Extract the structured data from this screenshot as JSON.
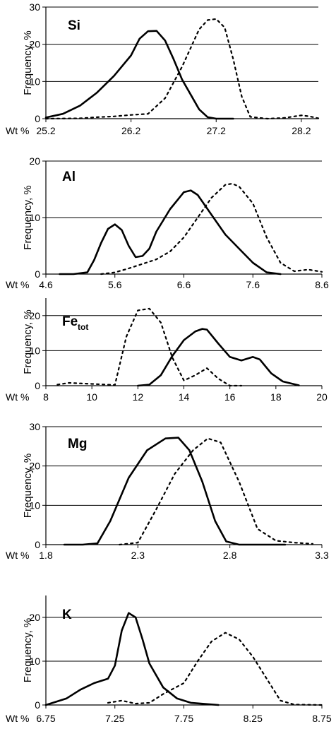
{
  "chart_data": [
    {
      "type": "line",
      "title": "Si",
      "title_sub": "",
      "xlabel": "Wt %",
      "ylabel": "Frequency, %",
      "xlim": [
        25.2,
        28.4
      ],
      "ylim": [
        0,
        30
      ],
      "yticks": [
        0,
        10,
        20,
        30
      ],
      "xticks": [
        25.2,
        26.2,
        27.2,
        28.2
      ],
      "xtick_labels": [
        "25.2",
        "26.2",
        "27.2",
        "28.2"
      ],
      "grid": "horizontal",
      "series": [
        {
          "style": "solid",
          "points": [
            [
              25.2,
              0.3
            ],
            [
              25.4,
              1.3
            ],
            [
              25.6,
              3.5
            ],
            [
              25.8,
              7.0
            ],
            [
              26.0,
              11.5
            ],
            [
              26.2,
              17.0
            ],
            [
              26.3,
              21.5
            ],
            [
              26.4,
              23.5
            ],
            [
              26.5,
              23.6
            ],
            [
              26.6,
              21.0
            ],
            [
              26.7,
              16.0
            ],
            [
              26.8,
              10.5
            ],
            [
              26.9,
              6.5
            ],
            [
              27.0,
              2.5
            ],
            [
              27.1,
              0.4
            ],
            [
              27.2,
              0
            ],
            [
              27.4,
              0
            ]
          ]
        },
        {
          "style": "dashed",
          "points": [
            [
              25.2,
              0
            ],
            [
              25.6,
              0.1
            ],
            [
              25.8,
              0.4
            ],
            [
              26.0,
              0.6
            ],
            [
              26.2,
              1.0
            ],
            [
              26.4,
              1.3
            ],
            [
              26.6,
              5.5
            ],
            [
              26.8,
              14.0
            ],
            [
              26.9,
              19.0
            ],
            [
              27.0,
              24.0
            ],
            [
              27.1,
              26.5
            ],
            [
              27.2,
              26.8
            ],
            [
              27.3,
              24.5
            ],
            [
              27.4,
              16.0
            ],
            [
              27.5,
              6.0
            ],
            [
              27.6,
              0.5
            ],
            [
              27.8,
              0
            ],
            [
              28.0,
              0.2
            ],
            [
              28.2,
              0.9
            ],
            [
              28.3,
              0.6
            ],
            [
              28.4,
              0.1
            ]
          ]
        }
      ]
    },
    {
      "type": "line",
      "title": "Al",
      "title_sub": "",
      "xlabel": "Wt %",
      "ylabel": "Frequency, %",
      "xlim": [
        4.6,
        8.6
      ],
      "ylim": [
        0,
        20
      ],
      "yticks": [
        0,
        10,
        20
      ],
      "xticks": [
        4.6,
        5.6,
        6.6,
        7.6,
        8.6
      ],
      "xtick_labels": [
        "4.6",
        "5.6",
        "6.6",
        "7.6",
        "8.6"
      ],
      "grid": "horizontal",
      "series": [
        {
          "style": "solid",
          "points": [
            [
              4.8,
              0
            ],
            [
              5.0,
              0
            ],
            [
              5.2,
              0.3
            ],
            [
              5.3,
              2.5
            ],
            [
              5.4,
              5.5
            ],
            [
              5.5,
              8.0
            ],
            [
              5.6,
              8.8
            ],
            [
              5.7,
              7.8
            ],
            [
              5.8,
              5.0
            ],
            [
              5.9,
              3.0
            ],
            [
              6.0,
              3.2
            ],
            [
              6.1,
              4.5
            ],
            [
              6.2,
              7.5
            ],
            [
              6.4,
              11.5
            ],
            [
              6.6,
              14.5
            ],
            [
              6.7,
              14.8
            ],
            [
              6.8,
              14.0
            ],
            [
              7.0,
              10.5
            ],
            [
              7.2,
              7.0
            ],
            [
              7.4,
              4.5
            ],
            [
              7.6,
              2.0
            ],
            [
              7.8,
              0.3
            ],
            [
              8.0,
              0
            ]
          ]
        },
        {
          "style": "dashed",
          "points": [
            [
              5.4,
              0
            ],
            [
              5.6,
              0.3
            ],
            [
              5.8,
              1.0
            ],
            [
              6.0,
              1.8
            ],
            [
              6.2,
              2.6
            ],
            [
              6.4,
              4.0
            ],
            [
              6.6,
              6.5
            ],
            [
              6.8,
              10.0
            ],
            [
              7.0,
              13.5
            ],
            [
              7.2,
              15.8
            ],
            [
              7.3,
              16.0
            ],
            [
              7.4,
              15.5
            ],
            [
              7.6,
              12.5
            ],
            [
              7.8,
              6.5
            ],
            [
              8.0,
              2.0
            ],
            [
              8.2,
              0.5
            ],
            [
              8.4,
              0.8
            ],
            [
              8.6,
              0.4
            ]
          ]
        }
      ]
    },
    {
      "type": "line",
      "title": "Fe",
      "title_sub": "tot",
      "xlabel": "Wt %",
      "ylabel": "Frequency, %",
      "xlim": [
        8,
        20
      ],
      "ylim": [
        0,
        25
      ],
      "yticks": [
        0,
        10,
        20
      ],
      "xticks": [
        8,
        10,
        12,
        14,
        16,
        18,
        20
      ],
      "xtick_labels": [
        "8",
        "10",
        "12",
        "14",
        "16",
        "18",
        "20"
      ],
      "grid": "horizontal",
      "series": [
        {
          "style": "solid",
          "points": [
            [
              12.0,
              0
            ],
            [
              12.5,
              0.3
            ],
            [
              13.0,
              3.0
            ],
            [
              13.5,
              8.5
            ],
            [
              14.0,
              13.0
            ],
            [
              14.5,
              15.5
            ],
            [
              14.8,
              16.2
            ],
            [
              15.0,
              16.0
            ],
            [
              15.5,
              12.0
            ],
            [
              16.0,
              8.2
            ],
            [
              16.5,
              7.2
            ],
            [
              17.0,
              8.2
            ],
            [
              17.3,
              7.5
            ],
            [
              17.8,
              3.5
            ],
            [
              18.3,
              1.2
            ],
            [
              19.0,
              0.1
            ]
          ]
        },
        {
          "style": "dashed",
          "points": [
            [
              8.5,
              0.3
            ],
            [
              9.0,
              0.8
            ],
            [
              10.0,
              0.5
            ],
            [
              11.0,
              0.2
            ],
            [
              11.5,
              14.0
            ],
            [
              12.0,
              21.5
            ],
            [
              12.5,
              22.0
            ],
            [
              13.0,
              18.0
            ],
            [
              13.5,
              8.0
            ],
            [
              14.0,
              1.5
            ],
            [
              14.5,
              3.0
            ],
            [
              15.0,
              5.0
            ],
            [
              15.5,
              2.0
            ],
            [
              16.0,
              0
            ],
            [
              16.5,
              0
            ]
          ]
        }
      ]
    },
    {
      "type": "line",
      "title": "Mg",
      "title_sub": "",
      "xlabel": "Wt %",
      "ylabel": "Frequency, %",
      "xlim": [
        1.8,
        3.3
      ],
      "ylim": [
        0,
        30
      ],
      "yticks": [
        0,
        10,
        20,
        30
      ],
      "xticks": [
        1.8,
        2.3,
        2.8,
        3.3
      ],
      "xtick_labels": [
        "1.8",
        "2.3",
        "2.8",
        "3.3"
      ],
      "grid": "horizontal",
      "series": [
        {
          "style": "solid",
          "points": [
            [
              1.9,
              0
            ],
            [
              2.0,
              0
            ],
            [
              2.08,
              0.3
            ],
            [
              2.15,
              6.0
            ],
            [
              2.25,
              17.0
            ],
            [
              2.35,
              24.0
            ],
            [
              2.45,
              27.0
            ],
            [
              2.52,
              27.2
            ],
            [
              2.58,
              24.0
            ],
            [
              2.65,
              16.0
            ],
            [
              2.72,
              6.0
            ],
            [
              2.78,
              0.8
            ],
            [
              2.85,
              0
            ],
            [
              3.1,
              0
            ]
          ]
        },
        {
          "style": "dashed",
          "points": [
            [
              2.2,
              0
            ],
            [
              2.3,
              0.5
            ],
            [
              2.4,
              9.0
            ],
            [
              2.5,
              18.0
            ],
            [
              2.6,
              24.0
            ],
            [
              2.68,
              27.0
            ],
            [
              2.75,
              26.0
            ],
            [
              2.85,
              16.0
            ],
            [
              2.95,
              4.0
            ],
            [
              3.05,
              1.0
            ],
            [
              3.15,
              0.5
            ],
            [
              3.25,
              0.2
            ]
          ]
        }
      ]
    },
    {
      "type": "line",
      "title": "K",
      "title_sub": "",
      "xlabel": "Wt %",
      "ylabel": "Frequency, %",
      "xlim": [
        6.75,
        8.75
      ],
      "ylim": [
        0,
        25
      ],
      "yticks": [
        0,
        10,
        20
      ],
      "xticks": [
        6.75,
        7.25,
        7.75,
        8.25,
        8.75
      ],
      "xtick_labels": [
        "6.75",
        "7.25",
        "7.75",
        "8.25",
        "8.75"
      ],
      "grid": "horizontal",
      "series": [
        {
          "style": "solid",
          "points": [
            [
              6.75,
              0
            ],
            [
              6.9,
              1.5
            ],
            [
              7.0,
              3.5
            ],
            [
              7.1,
              5.0
            ],
            [
              7.2,
              6.0
            ],
            [
              7.25,
              9.0
            ],
            [
              7.3,
              17.0
            ],
            [
              7.35,
              21.0
            ],
            [
              7.4,
              20.0
            ],
            [
              7.45,
              15.0
            ],
            [
              7.5,
              9.5
            ],
            [
              7.6,
              4.0
            ],
            [
              7.7,
              1.5
            ],
            [
              7.8,
              0.5
            ],
            [
              8.0,
              0
            ]
          ]
        },
        {
          "style": "dashed",
          "points": [
            [
              7.2,
              0.5
            ],
            [
              7.3,
              1.0
            ],
            [
              7.4,
              0.3
            ],
            [
              7.5,
              0.5
            ],
            [
              7.6,
              2.5
            ],
            [
              7.75,
              5.0
            ],
            [
              7.85,
              10.0
            ],
            [
              7.95,
              14.5
            ],
            [
              8.05,
              16.5
            ],
            [
              8.15,
              15.0
            ],
            [
              8.25,
              11.0
            ],
            [
              8.35,
              6.0
            ],
            [
              8.45,
              1.0
            ],
            [
              8.55,
              0.1
            ],
            [
              8.75,
              0
            ]
          ]
        }
      ]
    }
  ]
}
